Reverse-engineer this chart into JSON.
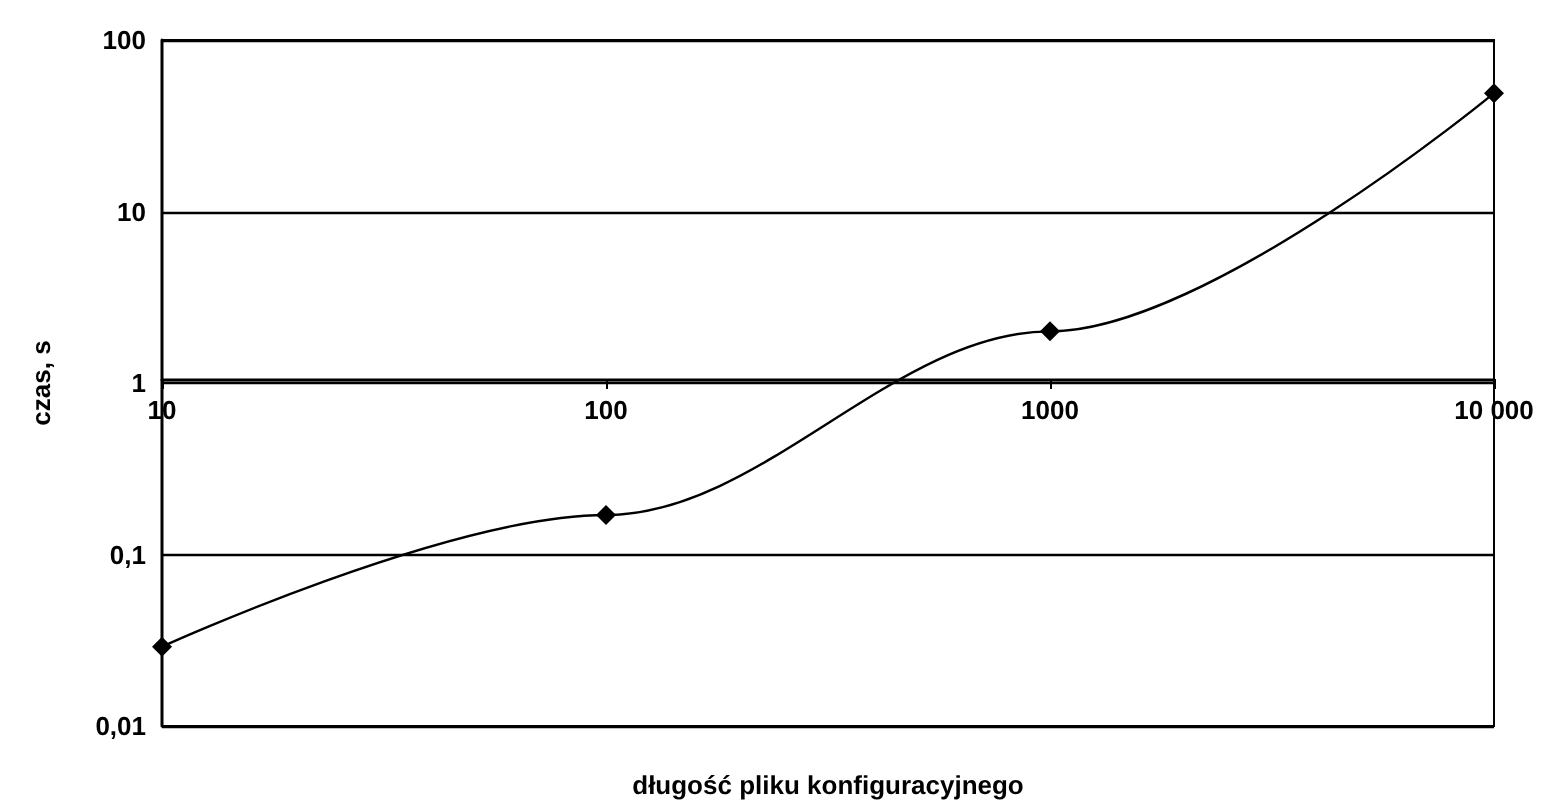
{
  "chart_data": {
    "type": "line",
    "xlabel": "długość pliku konfiguracyjnego",
    "ylabel": "czas, s",
    "x": [
      10,
      100,
      1000,
      10000
    ],
    "series": [
      {
        "color": "#000000",
        "values": [
          0.029,
          0.17,
          2.0,
          49
        ]
      }
    ],
    "log": "xy",
    "marker": "diamond",
    "line_style": "solid",
    "grid": "y",
    "xlim": [
      10,
      10000
    ],
    "xticks": [
      10,
      100,
      1000,
      {
        "value": 10000,
        "label": "10 000"
      }
    ],
    "ylim": [
      0.01,
      100
    ],
    "yticks": [
      {
        "value": 0.01,
        "label": "0,01"
      },
      {
        "value": 0.1,
        "label": "0,1"
      },
      1,
      10,
      100
    ]
  }
}
